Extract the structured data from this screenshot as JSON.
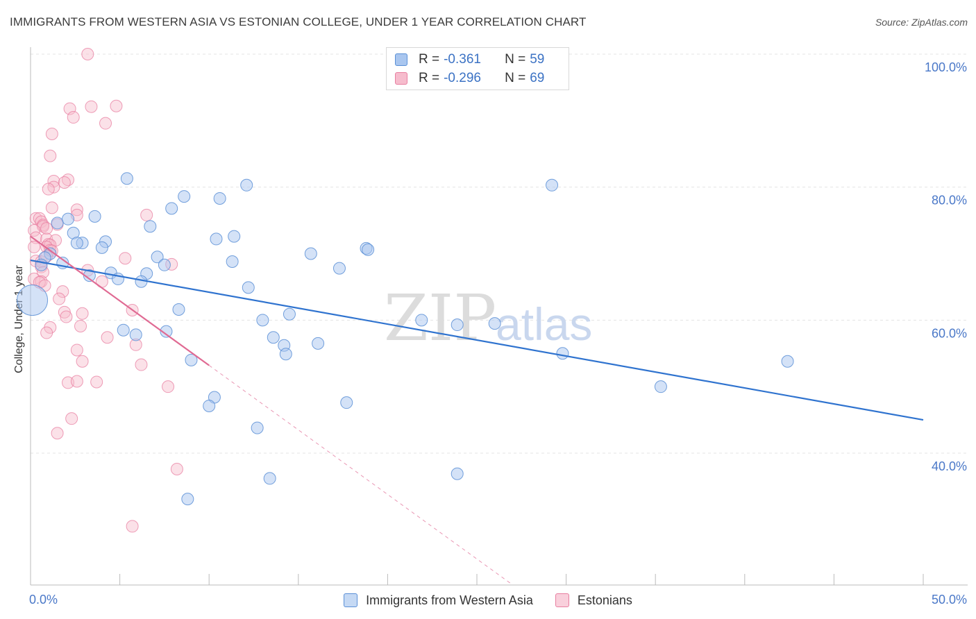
{
  "colors": {
    "blue_fill": "#a9c6ef",
    "blue_stroke": "#5a8fd6",
    "blue_line": "#2f73cf",
    "pink_fill": "#f6bccd",
    "pink_stroke": "#e87ea0",
    "pink_line": "#e06a93",
    "grid": "#e3e3e3",
    "axis": "#bbbbbb"
  },
  "chart_data": {
    "type": "scatter",
    "title": "IMMIGRANTS FROM WESTERN ASIA VS ESTONIAN COLLEGE, UNDER 1 YEAR CORRELATION CHART",
    "source": "Source: ZipAtlas.com",
    "xlabel": "",
    "ylabel": "College, Under 1 year",
    "xlim": [
      0,
      50
    ],
    "ylim": [
      19,
      100
    ],
    "x_tick_labels": [
      {
        "value": 0,
        "label": "0.0%"
      },
      {
        "value": 50,
        "label": "50.0%"
      }
    ],
    "y_tick_labels": [
      {
        "value": 100,
        "label": "100.0%"
      },
      {
        "value": 80,
        "label": "80.0%"
      },
      {
        "value": 60,
        "label": "60.0%"
      },
      {
        "value": 40,
        "label": "40.0%"
      }
    ],
    "grid": true,
    "watermark": {
      "zip": "ZIP",
      "atlas": "atlas"
    },
    "legend_position": "bottom-center",
    "stats": [
      {
        "r_label": "R =",
        "r_value": "-0.361",
        "n_label": "N =",
        "n_value": "59"
      },
      {
        "r_label": "R =",
        "r_value": "-0.296",
        "n_label": "N =",
        "n_value": "69"
      }
    ],
    "series": [
      {
        "name": "Immigrants from Western Asia",
        "color": "blue",
        "trend": {
          "x0": 0,
          "y0": 69.0,
          "x1": 50,
          "y1": 45.0
        },
        "points": [
          [
            5.4,
            81.3
          ],
          [
            8.6,
            78.6
          ],
          [
            12.1,
            80.3
          ],
          [
            29.2,
            80.3
          ],
          [
            10.6,
            78.3
          ],
          [
            7.9,
            76.8
          ],
          [
            3.6,
            75.6
          ],
          [
            2.1,
            75.2
          ],
          [
            6.7,
            74.1
          ],
          [
            1.5,
            74.6
          ],
          [
            2.4,
            73.1
          ],
          [
            11.4,
            72.6
          ],
          [
            10.4,
            72.2
          ],
          [
            2.9,
            71.6
          ],
          [
            4.2,
            71.8
          ],
          [
            2.6,
            71.6
          ],
          [
            4.0,
            70.9
          ],
          [
            1.1,
            70.0
          ],
          [
            18.8,
            70.8
          ],
          [
            18.9,
            70.6
          ],
          [
            15.7,
            70.0
          ],
          [
            0.8,
            69.4
          ],
          [
            7.1,
            69.5
          ],
          [
            1.8,
            68.6
          ],
          [
            11.3,
            68.8
          ],
          [
            0.6,
            68.3
          ],
          [
            7.5,
            68.3
          ],
          [
            17.3,
            67.8
          ],
          [
            4.5,
            67.1
          ],
          [
            3.3,
            66.7
          ],
          [
            6.5,
            67.0
          ],
          [
            4.9,
            66.2
          ],
          [
            6.2,
            65.8
          ],
          [
            12.2,
            64.9
          ],
          [
            8.3,
            61.6
          ],
          [
            14.5,
            60.9
          ],
          [
            13.0,
            60.0
          ],
          [
            21.9,
            60.0
          ],
          [
            23.9,
            59.3
          ],
          [
            26.0,
            59.5
          ],
          [
            0.1,
            63.0
          ],
          [
            5.2,
            58.5
          ],
          [
            5.9,
            57.8
          ],
          [
            7.6,
            58.3
          ],
          [
            13.6,
            57.4
          ],
          [
            14.2,
            56.2
          ],
          [
            16.1,
            56.5
          ],
          [
            14.3,
            54.9
          ],
          [
            29.8,
            55.0
          ],
          [
            42.4,
            53.8
          ],
          [
            9.0,
            54.0
          ],
          [
            10.3,
            48.4
          ],
          [
            10.0,
            47.1
          ],
          [
            17.7,
            47.6
          ],
          [
            35.3,
            50.0
          ],
          [
            12.7,
            43.8
          ],
          [
            13.4,
            36.2
          ],
          [
            23.9,
            36.9
          ],
          [
            8.8,
            33.1
          ]
        ]
      },
      {
        "name": "Estonians",
        "color": "pink",
        "trend": {
          "x0": 0,
          "y0": 72.6,
          "x1": 10.0,
          "y1": 53.2,
          "dash_to_x": 27.0,
          "dash_to_y": 20.2
        },
        "points": [
          [
            3.2,
            100.0
          ],
          [
            3.4,
            92.1
          ],
          [
            4.8,
            92.2
          ],
          [
            2.2,
            91.8
          ],
          [
            2.4,
            90.5
          ],
          [
            4.2,
            89.6
          ],
          [
            1.2,
            88.0
          ],
          [
            1.1,
            84.7
          ],
          [
            2.1,
            81.1
          ],
          [
            1.3,
            80.9
          ],
          [
            1.9,
            80.7
          ],
          [
            1.3,
            80.0
          ],
          [
            1.0,
            79.7
          ],
          [
            1.2,
            76.9
          ],
          [
            2.6,
            76.6
          ],
          [
            6.5,
            75.8
          ],
          [
            2.6,
            75.8
          ],
          [
            0.3,
            75.3
          ],
          [
            0.5,
            75.3
          ],
          [
            0.6,
            74.8
          ],
          [
            1.5,
            74.4
          ],
          [
            0.7,
            74.3
          ],
          [
            0.7,
            74.1
          ],
          [
            0.9,
            73.8
          ],
          [
            0.2,
            73.5
          ],
          [
            0.3,
            72.4
          ],
          [
            0.9,
            72.2
          ],
          [
            1.4,
            72.0
          ],
          [
            1.0,
            71.4
          ],
          [
            1.1,
            71.3
          ],
          [
            0.9,
            71.0
          ],
          [
            0.2,
            71.0
          ],
          [
            1.1,
            70.5
          ],
          [
            1.2,
            70.4
          ],
          [
            5.3,
            69.3
          ],
          [
            0.3,
            68.9
          ],
          [
            0.6,
            68.8
          ],
          [
            7.9,
            68.4
          ],
          [
            0.6,
            68.0
          ],
          [
            0.7,
            67.2
          ],
          [
            3.2,
            67.5
          ],
          [
            0.2,
            66.2
          ],
          [
            0.6,
            65.8
          ],
          [
            0.5,
            65.7
          ],
          [
            0.8,
            65.2
          ],
          [
            4.0,
            65.8
          ],
          [
            1.8,
            64.3
          ],
          [
            1.6,
            63.2
          ],
          [
            5.7,
            61.5
          ],
          [
            1.9,
            61.2
          ],
          [
            2.9,
            61.0
          ],
          [
            2.0,
            60.5
          ],
          [
            2.8,
            59.1
          ],
          [
            1.1,
            58.9
          ],
          [
            0.9,
            58.1
          ],
          [
            4.3,
            57.4
          ],
          [
            5.9,
            56.3
          ],
          [
            2.6,
            55.5
          ],
          [
            6.2,
            53.3
          ],
          [
            2.9,
            53.8
          ],
          [
            2.1,
            50.6
          ],
          [
            2.6,
            50.8
          ],
          [
            3.7,
            50.7
          ],
          [
            7.7,
            50.0
          ],
          [
            2.3,
            45.2
          ],
          [
            1.5,
            43.0
          ],
          [
            8.2,
            37.6
          ],
          [
            5.7,
            29.0
          ],
          [
            0.9,
            69.6
          ]
        ]
      }
    ]
  },
  "legend": {
    "items": [
      "Immigrants from Western Asia",
      "Estonians"
    ]
  }
}
